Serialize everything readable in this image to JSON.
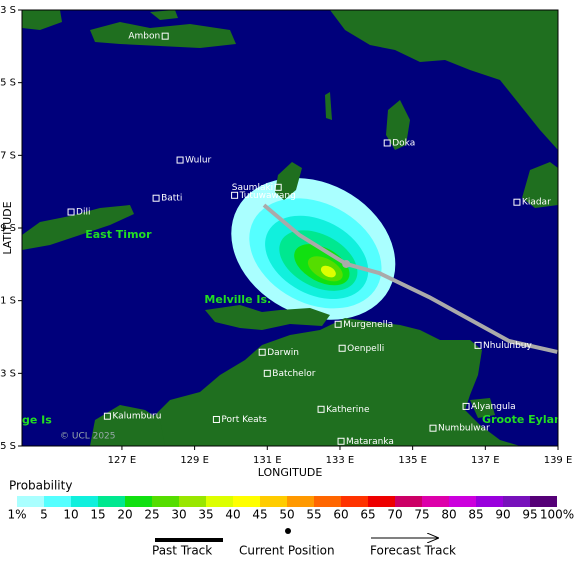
{
  "map": {
    "xlim": [
      124.25,
      139
    ],
    "ylim": [
      -15,
      -3
    ],
    "xlabel": "LONGITUDE",
    "ylabel": "LATITUDE",
    "xticks": [
      {
        "value": 127,
        "label": "127 E"
      },
      {
        "value": 129,
        "label": "129 E"
      },
      {
        "value": 131,
        "label": "131 E"
      },
      {
        "value": 133,
        "label": "133 E"
      },
      {
        "value": 135,
        "label": "135 E"
      },
      {
        "value": 137,
        "label": "137 E"
      },
      {
        "value": 139,
        "label": "139 E"
      }
    ],
    "yticks": [
      {
        "value": -3,
        "label": "3 S"
      },
      {
        "value": -5,
        "label": "5 S"
      },
      {
        "value": -7,
        "label": "7 S"
      },
      {
        "value": -9,
        "label": "9 S"
      },
      {
        "value": -11,
        "label": "11 S"
      },
      {
        "value": -13,
        "label": "13 S"
      },
      {
        "value": -15,
        "label": "15 S"
      }
    ],
    "places": [
      {
        "name": "Ambon",
        "lon": 128.19,
        "lat": -3.72
      },
      {
        "name": "Wulur",
        "lon": 128.6,
        "lat": -7.13
      },
      {
        "name": "Saumlaki",
        "lon": 131.3,
        "lat": -7.88
      },
      {
        "name": "Tutuwawang",
        "lon": 130.1,
        "lat": -8.1
      },
      {
        "name": "Batti",
        "lon": 127.94,
        "lat": -8.18
      },
      {
        "name": "Dili",
        "lon": 125.6,
        "lat": -8.56
      },
      {
        "name": "Doka",
        "lon": 134.3,
        "lat": -6.66
      },
      {
        "name": "Kiadar",
        "lon": 137.87,
        "lat": -8.29
      },
      {
        "name": "Murgenella",
        "lon": 132.95,
        "lat": -11.65
      },
      {
        "name": "Darwin",
        "lon": 130.86,
        "lat": -12.42
      },
      {
        "name": "Oenpelli",
        "lon": 133.06,
        "lat": -12.31
      },
      {
        "name": "Nhulunbuy",
        "lon": 136.8,
        "lat": -12.23
      },
      {
        "name": "Batchelor",
        "lon": 131.0,
        "lat": -13.0
      },
      {
        "name": "Kalumburu",
        "lon": 126.6,
        "lat": -14.18
      },
      {
        "name": "Port Keats",
        "lon": 129.6,
        "lat": -14.27
      },
      {
        "name": "Katherine",
        "lon": 132.48,
        "lat": -13.99
      },
      {
        "name": "Alyangula",
        "lon": 136.47,
        "lat": -13.91
      },
      {
        "name": "Numbulwar",
        "lon": 135.56,
        "lat": -14.51
      },
      {
        "name": "Mataranka",
        "lon": 133.03,
        "lat": -14.87
      }
    ],
    "regions": [
      {
        "name": "East Timor",
        "lon": 125.99,
        "lat": -9.19
      },
      {
        "name": "Melville Is.",
        "lon": 129.27,
        "lat": -10.98
      },
      {
        "name": "Groote Eylandt",
        "lon": 136.91,
        "lat": -14.29
      },
      {
        "name": "ge Is",
        "lon": 124.25,
        "lat": -14.3
      }
    ],
    "copyright": "© UCL 2025",
    "past_track": {
      "lon": [
        130.91,
        131.88,
        133.17
      ],
      "lat": [
        -8.37,
        -9.19,
        -9.99
      ]
    },
    "current_position": {
      "lon": 133.17,
      "lat": -9.99
    },
    "forecast_track": {
      "lon": [
        133.17,
        134.08,
        135.45,
        137.65,
        138.98
      ],
      "lat": [
        -9.99,
        -10.24,
        -10.9,
        -12.11,
        -12.41
      ]
    }
  },
  "legend": {
    "title": "Probability",
    "labels": [
      "1%",
      "5",
      "10",
      "15",
      "20",
      "25",
      "30",
      "35",
      "40",
      "45",
      "50",
      "55",
      "60",
      "65",
      "70",
      "75",
      "80",
      "85",
      "90",
      "95",
      "100%"
    ],
    "colors": [
      "#aaffff",
      "#55ffff",
      "#11f0dd",
      "#00e890",
      "#11e011",
      "#55dd00",
      "#99e600",
      "#ddff00",
      "#ffff00",
      "#ffcc00",
      "#ff9900",
      "#ff6600",
      "#ff3300",
      "#ee0000",
      "#cc0066",
      "#dd00aa",
      "#cc00dd",
      "#9900dd",
      "#7711bb",
      "#550077"
    ],
    "past_track": "Past Track",
    "current_position": "Current Position",
    "forecast_track": "Forecast Track"
  }
}
